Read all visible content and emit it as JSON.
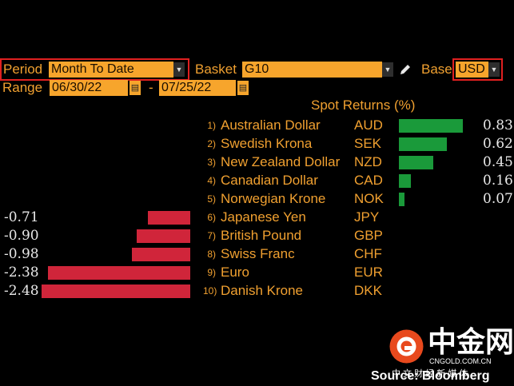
{
  "controls": {
    "period_label": "Period",
    "period_value": "Month To Date",
    "basket_label": "Basket",
    "basket_value": "G10",
    "base_label": "Base",
    "base_value": "USD",
    "range_label": "Range",
    "range_start": "06/30/22",
    "range_sep": "-",
    "range_end": "07/25/22"
  },
  "chart_title": "Spot Returns (%)",
  "chart_data": {
    "type": "bar",
    "title": "Spot Returns (%)",
    "orientation": "horizontal",
    "categories": [
      "Australian Dollar",
      "Swedish Krona",
      "New Zealand Dollar",
      "Canadian Dollar",
      "Norwegian Krone",
      "Japanese Yen",
      "British Pound",
      "Swiss Franc",
      "Euro",
      "Danish Krone"
    ],
    "codes": [
      "AUD",
      "SEK",
      "NZD",
      "CAD",
      "NOK",
      "JPY",
      "GBP",
      "CHF",
      "EUR",
      "DKK"
    ],
    "ranks": [
      "1)",
      "2)",
      "3)",
      "4)",
      "5)",
      "6)",
      "7)",
      "8)",
      "9)",
      "10)"
    ],
    "values": [
      0.83,
      0.62,
      0.45,
      0.16,
      0.07,
      -0.71,
      -0.9,
      -0.98,
      -2.38,
      -2.48
    ],
    "labels": [
      "0.83",
      "0.62",
      "0.45",
      "0.16",
      "0.07",
      "-0.71",
      "-0.90",
      "-0.98",
      "-2.38",
      "-2.48"
    ],
    "positive_color": "#1a9a3a",
    "negative_color": "#d0253a"
  },
  "watermark": {
    "brand_cn": "中金网",
    "domain": "CNGOLD.COM.CN",
    "tagline_cn": "中 文 财 经 新 媒 体",
    "source": "Source: Bloomberg"
  },
  "icons": {
    "pencil": "pencil-icon",
    "calendar": "calendar-icon",
    "dropdown": "chevron-down-icon"
  }
}
